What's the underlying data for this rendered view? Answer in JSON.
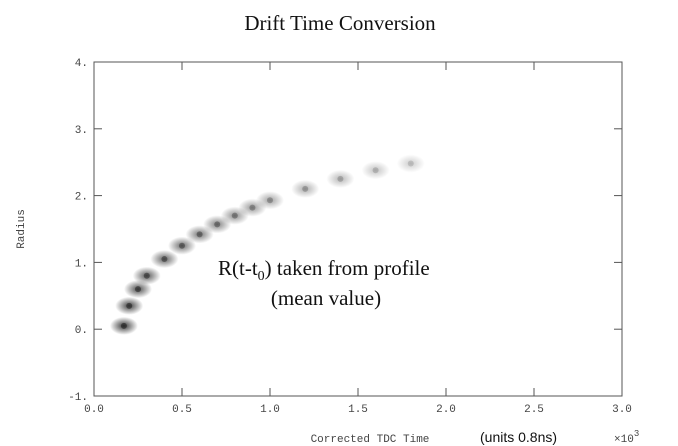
{
  "chart_data": {
    "type": "scatter",
    "title": "Drift Time Conversion",
    "x_label": "Corrected TDC Time",
    "x_units": "(units 0.8ns)",
    "x_multiplier": "×10",
    "x_multiplier_exp": "3",
    "y_label": "Radius",
    "annotation": {
      "before": "R(t-t",
      "sub": "0",
      "after": ") taken from profile",
      "line2": "(mean value)"
    },
    "color": "#222222",
    "x": [
      0.17,
      0.2,
      0.25,
      0.3,
      0.4,
      0.5,
      0.6,
      0.7,
      0.8,
      0.9,
      1.0,
      1.2,
      1.4,
      1.6,
      1.8
    ],
    "values": [
      0.05,
      0.35,
      0.6,
      0.8,
      1.05,
      1.25,
      1.42,
      1.57,
      1.7,
      1.82,
      1.93,
      2.1,
      2.25,
      2.38,
      2.48
    ],
    "xlim": [
      0,
      3
    ],
    "ylim": [
      -1,
      4
    ],
    "xticks": [
      {
        "value": 0,
        "label": "0.0"
      },
      {
        "value": 0.5,
        "label": "0.5"
      },
      {
        "value": 1,
        "label": "1.0"
      },
      {
        "value": 1.5,
        "label": "1.5"
      },
      {
        "value": 2,
        "label": "2.0"
      },
      {
        "value": 2.5,
        "label": "2.5"
      },
      {
        "value": 3,
        "label": "3.0"
      }
    ],
    "yticks": [
      {
        "value": -1,
        "label": "-1."
      },
      {
        "value": 0,
        "label": "0."
      },
      {
        "value": 1,
        "label": "1."
      },
      {
        "value": 2,
        "label": "2."
      },
      {
        "value": 3,
        "label": "3."
      },
      {
        "value": 4,
        "label": "4."
      }
    ]
  }
}
